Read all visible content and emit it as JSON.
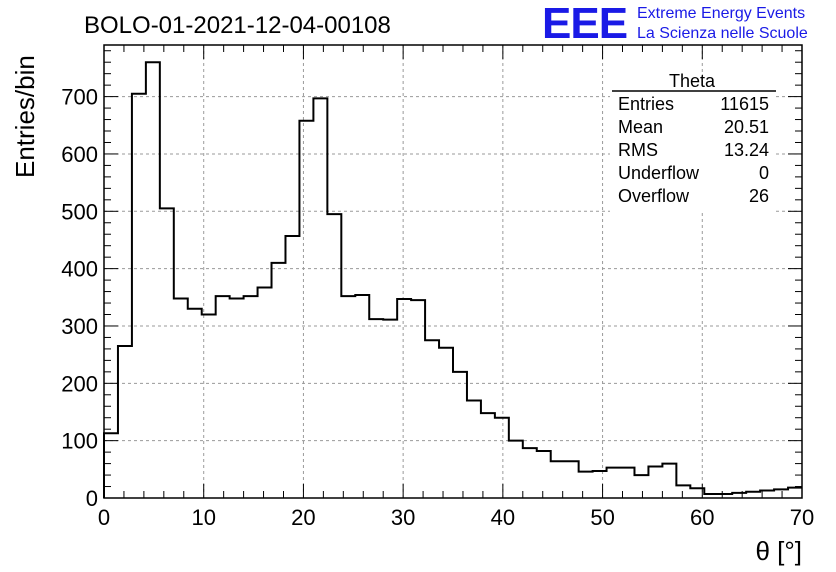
{
  "header": {
    "title": "BOLO-01-2021-12-04-00108",
    "logo_mark": "EEE",
    "logo_line1": "Extreme Energy Events",
    "logo_line2": "La Scienza nelle Scuole"
  },
  "stats": {
    "name": "Theta",
    "rows": [
      {
        "label": "Entries",
        "value": "11615"
      },
      {
        "label": "Mean",
        "value": "20.51"
      },
      {
        "label": "RMS",
        "value": "13.24"
      },
      {
        "label": "Underflow",
        "value": "0"
      },
      {
        "label": "Overflow",
        "value": "26"
      }
    ]
  },
  "chart_data": {
    "type": "bar",
    "histogram": true,
    "xlabel": "θ [°]",
    "ylabel": "Entries/bin",
    "xlim": [
      0,
      70
    ],
    "ylim": [
      0,
      790
    ],
    "xticks": [
      0,
      10,
      20,
      30,
      40,
      50,
      60,
      70
    ],
    "yticks": [
      0,
      100,
      200,
      300,
      400,
      500,
      600,
      700
    ],
    "grid": true,
    "line_color": "#000000",
    "bin_width": 1.4,
    "values": [
      113,
      265,
      705,
      760,
      505,
      348,
      330,
      320,
      352,
      348,
      352,
      367,
      410,
      457,
      658,
      697,
      495,
      352,
      354,
      312,
      311,
      347,
      345,
      275,
      262,
      220,
      170,
      148,
      140,
      100,
      87,
      82,
      64,
      64,
      46,
      47,
      53,
      53,
      40,
      55,
      60,
      22,
      17,
      7,
      7,
      9,
      11,
      13,
      15,
      18
    ]
  }
}
